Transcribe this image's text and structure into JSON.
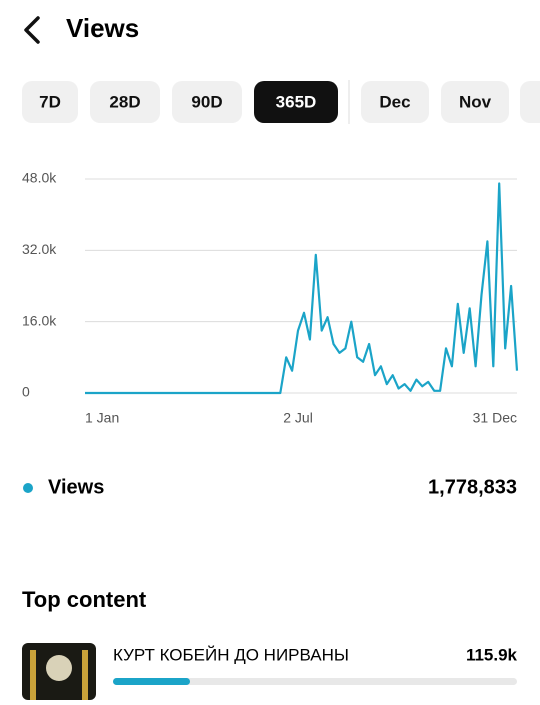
{
  "header": {
    "title": "Views"
  },
  "tabs": [
    {
      "label": "7D",
      "selected": false
    },
    {
      "label": "28D",
      "selected": false
    },
    {
      "label": "90D",
      "selected": false
    },
    {
      "label": "365D",
      "selected": true
    },
    {
      "label": "Dec",
      "selected": false
    },
    {
      "label": "Nov",
      "selected": false
    }
  ],
  "chart_data": {
    "type": "line",
    "categories": [
      "1 Jan",
      null,
      null,
      null,
      null,
      null,
      null,
      null,
      null,
      null,
      null,
      null,
      null,
      null,
      null,
      null,
      null,
      null,
      null,
      null,
      null,
      null,
      null,
      null,
      null,
      null,
      null,
      null,
      null,
      null,
      null,
      null,
      null,
      null,
      null,
      null,
      "2 Jul",
      null,
      null,
      null,
      null,
      null,
      null,
      null,
      null,
      null,
      null,
      null,
      null,
      null,
      null,
      null,
      null,
      null,
      null,
      null,
      null,
      null,
      null,
      null,
      null,
      null,
      null,
      null,
      null,
      null,
      null,
      null,
      null,
      null,
      null,
      null,
      null,
      "31 Dec"
    ],
    "series": [
      {
        "name": "Views",
        "color": "#1ba4c8",
        "values": [
          0,
          0,
          0,
          0,
          0,
          0,
          0,
          0,
          0,
          0,
          0,
          0,
          0,
          0,
          0,
          0,
          0,
          0,
          0,
          0,
          0,
          0,
          0,
          0,
          0,
          0,
          0,
          0,
          0,
          0,
          0,
          0,
          0,
          0,
          8000,
          5000,
          14000,
          18000,
          12000,
          31000,
          14000,
          17000,
          11000,
          9000,
          10000,
          16000,
          8000,
          7000,
          11000,
          4000,
          6000,
          2000,
          4000,
          1000,
          2000,
          500,
          3000,
          1500,
          2500,
          500,
          500,
          10000,
          6000,
          20000,
          9000,
          19000,
          6000,
          22000,
          34000,
          6000,
          47000,
          10000,
          24000,
          5000
        ]
      }
    ],
    "ylim": [
      0,
      48000
    ],
    "yticks": [
      0,
      {
        "value": 16000,
        "label": "16.0k"
      },
      {
        "value": 32000,
        "label": "32.0k"
      },
      {
        "value": 48000,
        "label": "48.0k"
      }
    ],
    "grid": true
  },
  "summary": {
    "total": "1,778,833"
  },
  "top_content": {
    "title": "Top content",
    "items": [
      {
        "title": "КУРТ КОБЕЙН ДО НИРВАНЫ",
        "value": "115.9k"
      }
    ]
  }
}
